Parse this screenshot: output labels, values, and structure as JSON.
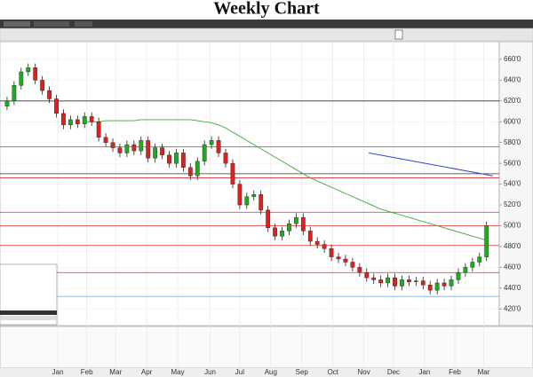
{
  "chart_data": {
    "type": "candlestick",
    "title": "Weekly Chart",
    "open": [
      615,
      620,
      635,
      648,
      652,
      640,
      630,
      622,
      608,
      597,
      602,
      598,
      605,
      600,
      585,
      580,
      575,
      570,
      578,
      572,
      582,
      565,
      575,
      568,
      560,
      570,
      556,
      548,
      562,
      578,
      582,
      570,
      560,
      540,
      520,
      528,
      530,
      515,
      498,
      490,
      495,
      502,
      508,
      495,
      485,
      482,
      478,
      470,
      468,
      465,
      460,
      455,
      450,
      448,
      445,
      450,
      442,
      448,
      446,
      447,
      443,
      438,
      445,
      442,
      448,
      455,
      460,
      465,
      470
    ],
    "high": [
      624,
      639,
      652,
      656,
      656,
      644,
      634,
      626,
      612,
      606,
      606,
      609,
      609,
      604,
      589,
      584,
      579,
      582,
      582,
      586,
      586,
      579,
      579,
      572,
      574,
      574,
      560,
      566,
      582,
      586,
      586,
      574,
      564,
      544,
      532,
      534,
      534,
      519,
      502,
      499,
      506,
      512,
      512,
      499,
      489,
      486,
      482,
      474,
      472,
      469,
      464,
      459,
      454,
      452,
      454,
      454,
      452,
      452,
      451,
      451,
      447,
      449,
      449,
      452,
      459,
      464,
      469,
      474,
      504
    ],
    "low": [
      611,
      616,
      631,
      644,
      636,
      626,
      618,
      604,
      593,
      593,
      594,
      594,
      596,
      581,
      576,
      571,
      566,
      566,
      568,
      568,
      561,
      561,
      564,
      556,
      556,
      552,
      544,
      544,
      558,
      574,
      566,
      556,
      536,
      516,
      516,
      524,
      511,
      494,
      486,
      486,
      491,
      498,
      491,
      481,
      478,
      474,
      466,
      464,
      461,
      456,
      451,
      446,
      444,
      441,
      441,
      438,
      438,
      442,
      442,
      439,
      434,
      434,
      438,
      438,
      444,
      451,
      456,
      461,
      466
    ],
    "close": [
      620,
      635,
      648,
      652,
      640,
      630,
      622,
      608,
      597,
      602,
      598,
      605,
      600,
      585,
      580,
      575,
      570,
      578,
      572,
      582,
      565,
      575,
      568,
      560,
      570,
      556,
      548,
      562,
      578,
      582,
      570,
      560,
      540,
      520,
      528,
      530,
      515,
      498,
      490,
      495,
      502,
      508,
      495,
      485,
      482,
      478,
      470,
      468,
      465,
      460,
      455,
      450,
      448,
      445,
      450,
      442,
      448,
      446,
      447,
      443,
      438,
      445,
      442,
      448,
      455,
      460,
      465,
      470,
      500
    ],
    "up_color": "#1faa1f",
    "down_color": "#dd2020",
    "moving_average": {
      "color": "#3aa83a",
      "values": [
        null,
        null,
        null,
        null,
        null,
        null,
        null,
        null,
        null,
        null,
        null,
        600,
        600,
        600,
        601,
        601,
        601,
        601,
        601,
        602,
        602,
        602,
        602,
        602,
        602,
        602,
        602,
        601,
        600,
        599,
        597,
        594,
        590,
        586,
        582,
        578,
        574,
        570,
        566,
        562,
        558,
        554,
        550,
        546,
        543,
        540,
        537,
        534,
        531,
        528,
        525,
        522,
        519,
        516,
        514,
        512,
        510,
        508,
        506,
        504,
        502,
        500,
        498,
        496,
        494,
        492,
        490,
        488,
        486
      ]
    },
    "levels": [
      {
        "value": 620,
        "color": "#333333"
      },
      {
        "value": 576,
        "color": "#d83030"
      },
      {
        "value": 550,
        "color": "#333333"
      },
      {
        "value": 546,
        "color": "#d83030"
      },
      {
        "value": 513,
        "color": "#d83030"
      },
      {
        "value": 500,
        "color": "#d83030"
      },
      {
        "value": 481,
        "color": "#d83030"
      },
      {
        "value": 455,
        "color": "#d83030"
      },
      {
        "value": 432,
        "color": "#7fb0e0"
      }
    ],
    "trendline": {
      "x": [
        51.3,
        68.9
      ],
      "y": [
        570,
        548
      ],
      "color": "#3344cc"
    },
    "xlim": [
      -1,
      69.8
    ],
    "xticks": [
      {
        "value": 7.2,
        "label": "Jan"
      },
      {
        "value": 11.3,
        "label": "Feb"
      },
      {
        "value": 15.4,
        "label": "Mar"
      },
      {
        "value": 19.8,
        "label": "Apr"
      },
      {
        "value": 24.2,
        "label": "May"
      },
      {
        "value": 28.8,
        "label": "Jun"
      },
      {
        "value": 33,
        "label": "Jul"
      },
      {
        "value": 37.4,
        "label": "Aug"
      },
      {
        "value": 41.8,
        "label": "Sep"
      },
      {
        "value": 46.2,
        "label": "Oct"
      },
      {
        "value": 50.6,
        "label": "Nov"
      },
      {
        "value": 54.8,
        "label": "Dec"
      },
      {
        "value": 59.2,
        "label": "Jan"
      },
      {
        "value": 63.5,
        "label": "Feb"
      },
      {
        "value": 67.6,
        "label": "Mar"
      }
    ],
    "ylim": [
      404,
      677
    ],
    "yticks": [
      {
        "value": 420,
        "label": "420'0"
      },
      {
        "value": 440,
        "label": "440'0"
      },
      {
        "value": 460,
        "label": "460'0"
      },
      {
        "value": 480,
        "label": "480'0"
      },
      {
        "value": 500,
        "label": "500'0"
      },
      {
        "value": 520,
        "label": "520'0"
      },
      {
        "value": 540,
        "label": "540'0"
      },
      {
        "value": 560,
        "label": "560'0"
      },
      {
        "value": 580,
        "label": "580'0"
      },
      {
        "value": 600,
        "label": "600'0"
      },
      {
        "value": 620,
        "label": "620'0"
      },
      {
        "value": 640,
        "label": "640'0"
      },
      {
        "value": 660,
        "label": "660'0"
      }
    ],
    "grid": true
  }
}
